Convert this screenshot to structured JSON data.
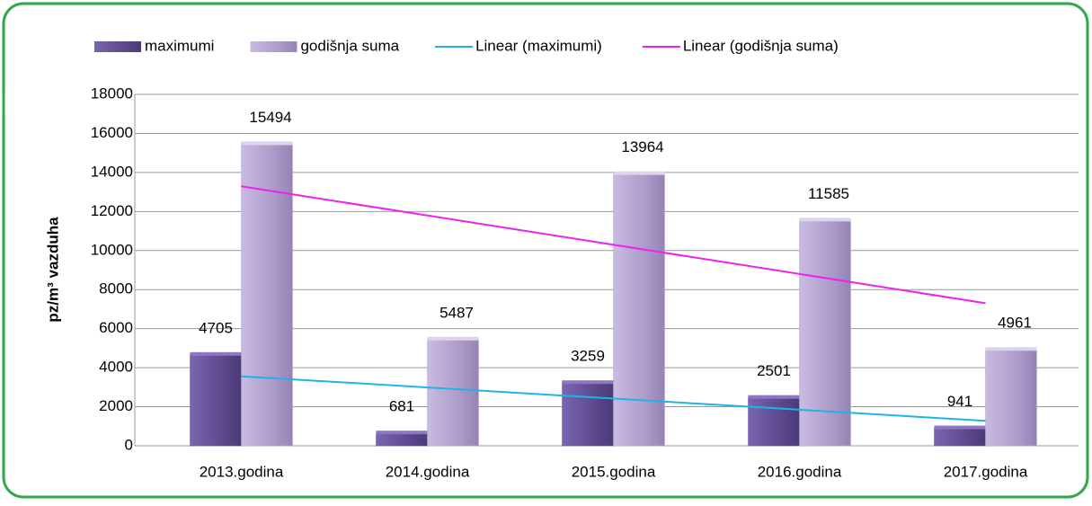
{
  "chart_data": {
    "type": "bar",
    "y_label": "pz/m³ vazduha",
    "categories": [
      "2013.godina",
      "2014.godina",
      "2015.godina",
      "2016.godina",
      "2017.godina"
    ],
    "series": [
      {
        "name": "maximumi",
        "color": "#6a55a0",
        "values": [
          4705,
          681,
          3259,
          2501,
          941
        ]
      },
      {
        "name": "godišnja suma",
        "color": "#b8a8d4",
        "values": [
          15494,
          5487,
          13964,
          11585,
          4961
        ]
      }
    ],
    "trendlines": [
      {
        "name": "Linear (maximumi)",
        "color": "#1fb3e6",
        "of": "maximumi"
      },
      {
        "name": "Linear (godišnja suma)",
        "color": "#ee22ee",
        "of": "godišnja suma"
      }
    ],
    "ylim": [
      0,
      18000
    ],
    "yticks": [
      0,
      2000,
      4000,
      6000,
      8000,
      10000,
      12000,
      14000,
      16000,
      18000
    ],
    "grid": true,
    "legend": "top"
  }
}
